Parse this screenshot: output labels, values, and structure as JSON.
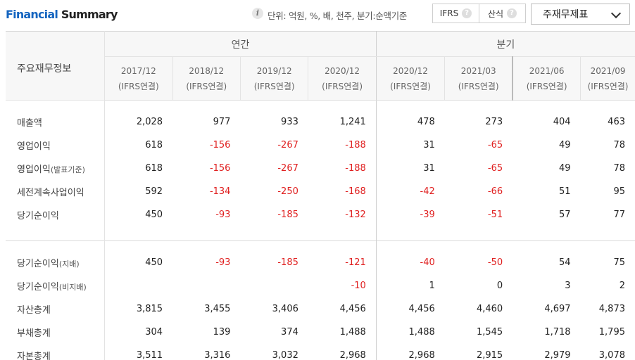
{
  "header": {
    "title_part1": "Financial",
    "title_part2": "Summary",
    "info_icon": "info-icon",
    "unit_text": "단위: 억원, %, 배, 천주, 분기:순액기준",
    "toggle": {
      "options": [
        {
          "label": "IFRS",
          "help": "?"
        },
        {
          "label": "산식",
          "help": "?"
        }
      ]
    },
    "select_value": "주재무제표"
  },
  "table": {
    "row_header_label": "주요재무정보",
    "groups": {
      "annual": "연간",
      "quarterly": "분기"
    },
    "columns": [
      {
        "period": "2017/12",
        "basis": "(IFRS연결)"
      },
      {
        "period": "2018/12",
        "basis": "(IFRS연결)"
      },
      {
        "period": "2019/12",
        "basis": "(IFRS연결)"
      },
      {
        "period": "2020/12",
        "basis": "(IFRS연결)"
      },
      {
        "period": "2020/12",
        "basis": "(IFRS연결)"
      },
      {
        "period": "2021/03",
        "basis": "(IFRS연결)"
      },
      {
        "period": "2021/06",
        "basis": "(IFRS연결)"
      },
      {
        "period": "2021/09",
        "basis": "(IFRS연결)"
      }
    ],
    "rows": [
      {
        "label": "매출액",
        "suffix": "",
        "values": [
          "2,028",
          "977",
          "933",
          "1,241",
          "478",
          "273",
          "404",
          "463"
        ]
      },
      {
        "label": "영업이익",
        "suffix": "",
        "values": [
          "618",
          "-156",
          "-267",
          "-188",
          "31",
          "-65",
          "49",
          "78"
        ]
      },
      {
        "label": "영업이익",
        "suffix": "(발표기준)",
        "values": [
          "618",
          "-156",
          "-267",
          "-188",
          "31",
          "-65",
          "49",
          "78"
        ]
      },
      {
        "label": "세전계속사업이익",
        "suffix": "",
        "values": [
          "592",
          "-134",
          "-250",
          "-168",
          "-42",
          "-66",
          "51",
          "95"
        ]
      },
      {
        "label": "당기순이익",
        "suffix": "",
        "values": [
          "450",
          "-93",
          "-185",
          "-132",
          "-39",
          "-51",
          "57",
          "77"
        ]
      },
      {
        "label": "당기순이익",
        "suffix": "(지배)",
        "values": [
          "450",
          "-93",
          "-185",
          "-121",
          "-40",
          "-50",
          "54",
          "75"
        ]
      },
      {
        "label": "당기순이익",
        "suffix": "(비지배)",
        "values": [
          "",
          "",
          "",
          "-10",
          "1",
          "0",
          "3",
          "2"
        ]
      },
      {
        "label": "자산총계",
        "suffix": "",
        "values": [
          "3,815",
          "3,455",
          "3,406",
          "4,456",
          "4,456",
          "4,460",
          "4,697",
          "4,873"
        ]
      },
      {
        "label": "부채총계",
        "suffix": "",
        "values": [
          "304",
          "139",
          "374",
          "1,488",
          "1,488",
          "1,545",
          "1,718",
          "1,795"
        ]
      },
      {
        "label": "자본총계",
        "suffix": "",
        "values": [
          "3,511",
          "3,316",
          "3,032",
          "2,968",
          "2,968",
          "2,915",
          "2,979",
          "3,078"
        ]
      }
    ]
  },
  "colors": {
    "accent": "#1565c0",
    "negative": "#e02020"
  }
}
